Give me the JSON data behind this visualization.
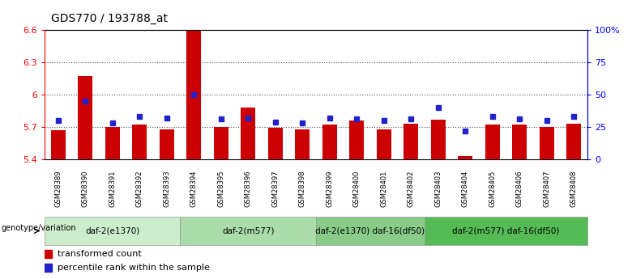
{
  "title": "GDS770 / 193788_at",
  "samples": [
    "GSM28389",
    "GSM28390",
    "GSM28391",
    "GSM28392",
    "GSM28393",
    "GSM28394",
    "GSM28395",
    "GSM28396",
    "GSM28397",
    "GSM28398",
    "GSM28399",
    "GSM28400",
    "GSM28401",
    "GSM28402",
    "GSM28403",
    "GSM28404",
    "GSM28405",
    "GSM28406",
    "GSM28407",
    "GSM28408"
  ],
  "bar_values": [
    5.67,
    6.17,
    5.7,
    5.72,
    5.68,
    6.6,
    5.7,
    5.88,
    5.69,
    5.68,
    5.72,
    5.76,
    5.68,
    5.73,
    5.77,
    5.43,
    5.72,
    5.72,
    5.7,
    5.73
  ],
  "dot_values": [
    30,
    45,
    28,
    33,
    32,
    50,
    31,
    32,
    29,
    28,
    32,
    31,
    30,
    31,
    40,
    22,
    33,
    31,
    30,
    33
  ],
  "ymin": 5.4,
  "ymax": 6.6,
  "yticks": [
    5.4,
    5.7,
    6.0,
    6.3,
    6.6
  ],
  "ytick_labels": [
    "5.4",
    "5.7",
    "6",
    "6.3",
    "6.6"
  ],
  "right_yticks": [
    0,
    25,
    50,
    75,
    100
  ],
  "right_ytick_labels": [
    "0",
    "25",
    "50",
    "75",
    "100%"
  ],
  "bar_color": "#cc0000",
  "dot_color": "#2222cc",
  "group_colors": [
    "#cceecc",
    "#aaddaa",
    "#88cc88",
    "#55bb55"
  ],
  "groups": [
    {
      "label": "daf-2(e1370)",
      "start": 0,
      "end": 5
    },
    {
      "label": "daf-2(m577)",
      "start": 5,
      "end": 10
    },
    {
      "label": "daf-2(e1370) daf-16(df50)",
      "start": 10,
      "end": 14
    },
    {
      "label": "daf-2(m577) daf-16(df50)",
      "start": 14,
      "end": 20
    }
  ],
  "legend_items": [
    {
      "label": "transformed count",
      "color": "#cc0000"
    },
    {
      "label": "percentile rank within the sample",
      "color": "#2222cc"
    }
  ],
  "genotype_label": "genotype/variation",
  "background_color": "#ffffff",
  "tick_area_color": "#bbbbbb",
  "dotted_line_color": "#555555"
}
